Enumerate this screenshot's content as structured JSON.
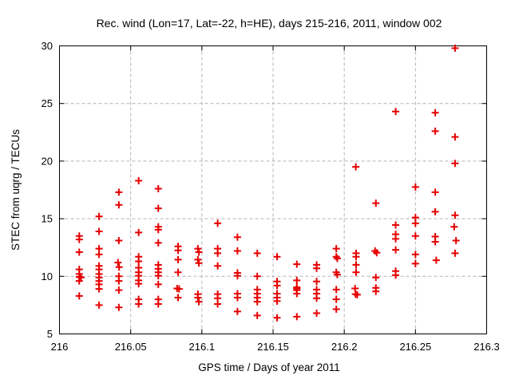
{
  "figure": {
    "background_color": "#ffffff",
    "text_color": "#000000"
  },
  "chart_data": {
    "type": "scatter",
    "title": "Rec. wind (Lon=17, Lat=-22, h=HE), days 215-216, 2011, window 002",
    "xlabel": "GPS time / Days of year 2011",
    "ylabel": "STEC from uqrg / TECUs",
    "xlim": [
      216,
      216.3
    ],
    "ylim": [
      5,
      30
    ],
    "xticks": [
      216,
      216.05,
      216.1,
      216.15,
      216.2,
      216.25,
      216.3
    ],
    "xtick_labels": [
      "216",
      "216.05",
      "216.1",
      "216.15",
      "216.2",
      "216.25",
      "216.3"
    ],
    "yticks": [
      5,
      10,
      15,
      20,
      25,
      30
    ],
    "ytick_labels": [
      "5",
      "10",
      "15",
      "20",
      "25",
      "30"
    ],
    "grid": true,
    "grid_color": "#b4b4b4",
    "border_color": "#000000",
    "legend": "none",
    "marker": {
      "shape": "plus",
      "color": "#e60000",
      "size": 9,
      "stroke_width": 2
    },
    "series": [
      {
        "name": "STEC",
        "points": [
          [
            216.0139,
            13.5
          ],
          [
            216.0139,
            13.2
          ],
          [
            216.0139,
            12.1
          ],
          [
            216.0139,
            10.6
          ],
          [
            216.0139,
            10.2
          ],
          [
            216.0139,
            9.95
          ],
          [
            216.0151,
            9.9
          ],
          [
            216.0139,
            9.6
          ],
          [
            216.0139,
            8.3
          ],
          [
            216.0278,
            15.2
          ],
          [
            216.0278,
            13.9
          ],
          [
            216.0278,
            12.4
          ],
          [
            216.0278,
            11.9
          ],
          [
            216.0278,
            10.9
          ],
          [
            216.0278,
            10.6
          ],
          [
            216.0278,
            10.2
          ],
          [
            216.0278,
            9.9
          ],
          [
            216.0278,
            9.6
          ],
          [
            216.0278,
            9.3
          ],
          [
            216.0278,
            8.9
          ],
          [
            216.0278,
            7.5
          ],
          [
            216.0417,
            17.3
          ],
          [
            216.0417,
            16.2
          ],
          [
            216.0417,
            13.1
          ],
          [
            216.0411,
            11.2
          ],
          [
            216.0419,
            10.8
          ],
          [
            216.0417,
            10.0
          ],
          [
            216.0417,
            9.6
          ],
          [
            216.0417,
            8.8
          ],
          [
            216.0417,
            7.3
          ],
          [
            216.0556,
            18.3
          ],
          [
            216.0556,
            13.8
          ],
          [
            216.0556,
            11.7
          ],
          [
            216.0556,
            11.3
          ],
          [
            216.0556,
            10.75
          ],
          [
            216.0556,
            10.35
          ],
          [
            216.0556,
            10.05
          ],
          [
            216.0556,
            9.65
          ],
          [
            216.0556,
            9.35
          ],
          [
            216.0556,
            8.0
          ],
          [
            216.0556,
            7.6
          ],
          [
            216.0694,
            17.6
          ],
          [
            216.0694,
            15.9
          ],
          [
            216.0694,
            14.3
          ],
          [
            216.0694,
            14.05
          ],
          [
            216.0694,
            12.9
          ],
          [
            216.0694,
            11.0
          ],
          [
            216.0694,
            10.65
          ],
          [
            216.0694,
            10.35
          ],
          [
            216.0694,
            10.05
          ],
          [
            216.0694,
            9.3
          ],
          [
            216.0694,
            8.0
          ],
          [
            216.0694,
            7.6
          ],
          [
            216.0833,
            12.6
          ],
          [
            216.0833,
            12.25
          ],
          [
            216.0833,
            11.45
          ],
          [
            216.0833,
            10.35
          ],
          [
            216.0826,
            8.95
          ],
          [
            216.084,
            8.9
          ],
          [
            216.0833,
            8.15
          ],
          [
            216.0972,
            12.4
          ],
          [
            216.0979,
            12.1
          ],
          [
            216.0972,
            11.45
          ],
          [
            216.0979,
            11.15
          ],
          [
            216.0972,
            8.45
          ],
          [
            216.0972,
            8.15
          ],
          [
            216.0979,
            7.8
          ],
          [
            216.1111,
            14.6
          ],
          [
            216.1111,
            12.4
          ],
          [
            216.1111,
            12.0
          ],
          [
            216.1111,
            10.9
          ],
          [
            216.1111,
            8.45
          ],
          [
            216.1111,
            8.1
          ],
          [
            216.1111,
            7.6
          ],
          [
            216.125,
            13.4
          ],
          [
            216.125,
            12.2
          ],
          [
            216.125,
            10.3
          ],
          [
            216.125,
            10.05
          ],
          [
            216.125,
            8.5
          ],
          [
            216.125,
            8.15
          ],
          [
            216.125,
            6.95
          ],
          [
            216.1389,
            12.0
          ],
          [
            216.1389,
            10.0
          ],
          [
            216.1389,
            8.85
          ],
          [
            216.1389,
            8.5
          ],
          [
            216.1389,
            8.15
          ],
          [
            216.1389,
            7.8
          ],
          [
            216.1389,
            6.6
          ],
          [
            216.1528,
            11.7
          ],
          [
            216.1528,
            9.55
          ],
          [
            216.1528,
            9.2
          ],
          [
            216.1528,
            8.5
          ],
          [
            216.1528,
            8.15
          ],
          [
            216.1528,
            7.85
          ],
          [
            216.1528,
            6.4
          ],
          [
            216.1667,
            11.05
          ],
          [
            216.1667,
            9.65
          ],
          [
            216.1667,
            9.05
          ],
          [
            216.1667,
            8.95
          ],
          [
            216.1667,
            8.8
          ],
          [
            216.1667,
            8.5
          ],
          [
            216.1667,
            6.5
          ],
          [
            216.1806,
            11.0
          ],
          [
            216.1806,
            10.7
          ],
          [
            216.1806,
            9.55
          ],
          [
            216.1806,
            8.85
          ],
          [
            216.1806,
            8.5
          ],
          [
            216.1806,
            8.1
          ],
          [
            216.1806,
            6.8
          ],
          [
            216.1944,
            12.4
          ],
          [
            216.1944,
            11.7
          ],
          [
            216.1951,
            11.55
          ],
          [
            216.1944,
            10.35
          ],
          [
            216.1951,
            10.15
          ],
          [
            216.1944,
            8.85
          ],
          [
            216.1944,
            8.0
          ],
          [
            216.1944,
            7.15
          ],
          [
            216.2081,
            19.5
          ],
          [
            216.2083,
            12.0
          ],
          [
            216.2083,
            11.7
          ],
          [
            216.2083,
            11.0
          ],
          [
            216.2083,
            10.35
          ],
          [
            216.2076,
            8.95
          ],
          [
            216.2079,
            8.45
          ],
          [
            216.2091,
            8.4
          ],
          [
            216.2222,
            16.35
          ],
          [
            216.2216,
            12.2
          ],
          [
            216.2228,
            12.05
          ],
          [
            216.2222,
            9.9
          ],
          [
            216.2222,
            9.0
          ],
          [
            216.2222,
            8.7
          ],
          [
            216.2361,
            24.3
          ],
          [
            216.2361,
            14.45
          ],
          [
            216.2361,
            13.65
          ],
          [
            216.2361,
            13.25
          ],
          [
            216.2361,
            12.3
          ],
          [
            216.2361,
            10.45
          ],
          [
            216.2361,
            10.1
          ],
          [
            216.25,
            17.75
          ],
          [
            216.25,
            15.1
          ],
          [
            216.25,
            14.6
          ],
          [
            216.25,
            13.5
          ],
          [
            216.25,
            11.9
          ],
          [
            216.25,
            11.1
          ],
          [
            216.2639,
            24.2
          ],
          [
            216.2639,
            22.6
          ],
          [
            216.2639,
            17.3
          ],
          [
            216.2639,
            15.6
          ],
          [
            216.2639,
            13.45
          ],
          [
            216.2639,
            13.0
          ],
          [
            216.2646,
            11.4
          ],
          [
            216.2778,
            29.8
          ],
          [
            216.2778,
            22.1
          ],
          [
            216.2778,
            19.8
          ],
          [
            216.2778,
            15.3
          ],
          [
            216.2772,
            14.3
          ],
          [
            216.2785,
            13.1
          ],
          [
            216.2778,
            12.0
          ]
        ]
      }
    ]
  }
}
